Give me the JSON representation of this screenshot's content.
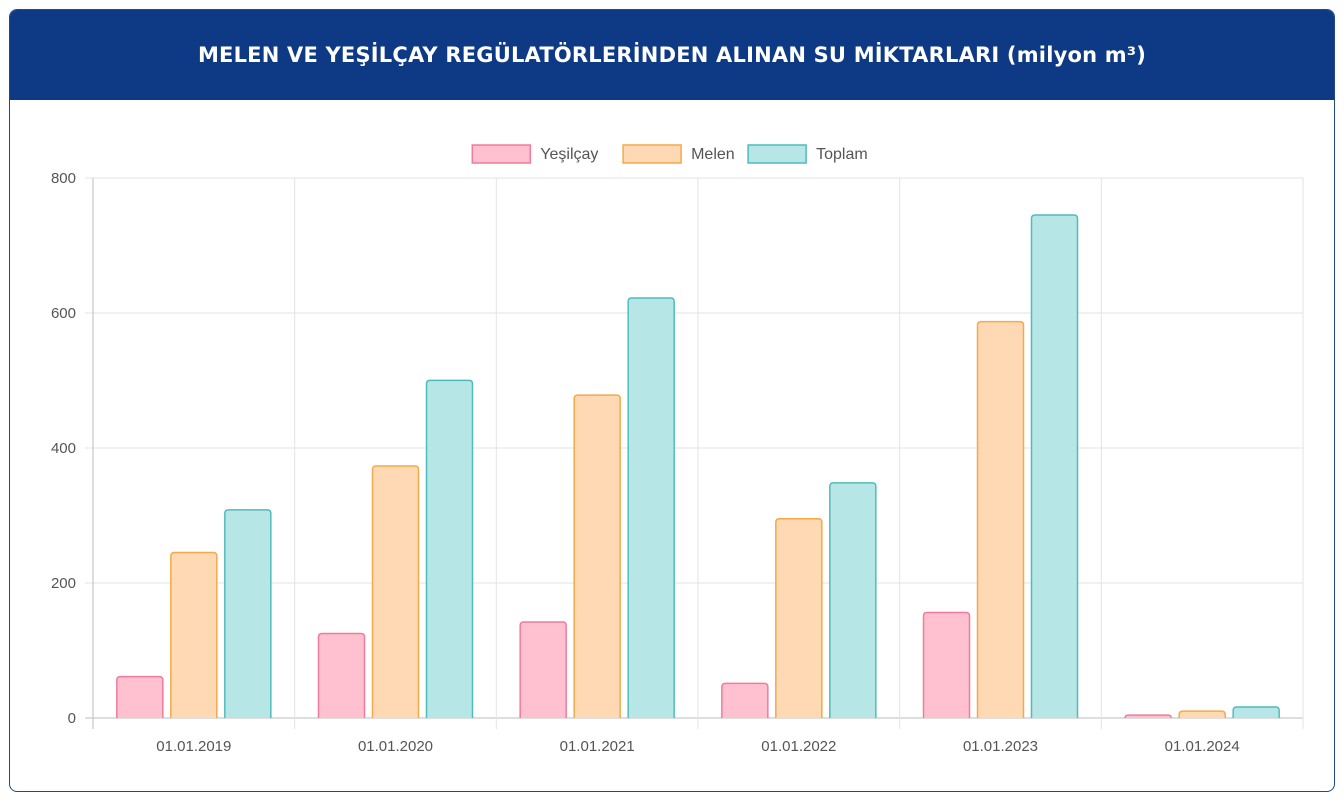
{
  "header": {
    "title": "MELEN VE YEŞİLÇAY REGÜLATÖRLERİNDEN ALINAN SU MİKTARLARI (milyon m³)"
  },
  "chart_data": {
    "type": "bar",
    "categories": [
      "01.01.2019",
      "01.01.2020",
      "01.01.2021",
      "01.01.2022",
      "01.01.2023",
      "01.01.2024"
    ],
    "series": [
      {
        "name": "Yeşilçay",
        "values": [
          62,
          126,
          143,
          52,
          157,
          5
        ],
        "fill": "#ffc1d0",
        "stroke": "#f07b9c"
      },
      {
        "name": "Melen",
        "values": [
          246,
          374,
          479,
          296,
          588,
          11
        ],
        "fill": "#ffd9b3",
        "stroke": "#f4a94a"
      },
      {
        "name": "Toplam",
        "values": [
          309,
          501,
          623,
          349,
          746,
          17
        ],
        "fill": "#b6e7e6",
        "stroke": "#4fbcbc"
      }
    ],
    "ylim": [
      0,
      800
    ],
    "yticks": [
      0,
      200,
      400,
      600,
      800
    ],
    "grid": true,
    "legend_position": "top-center"
  }
}
